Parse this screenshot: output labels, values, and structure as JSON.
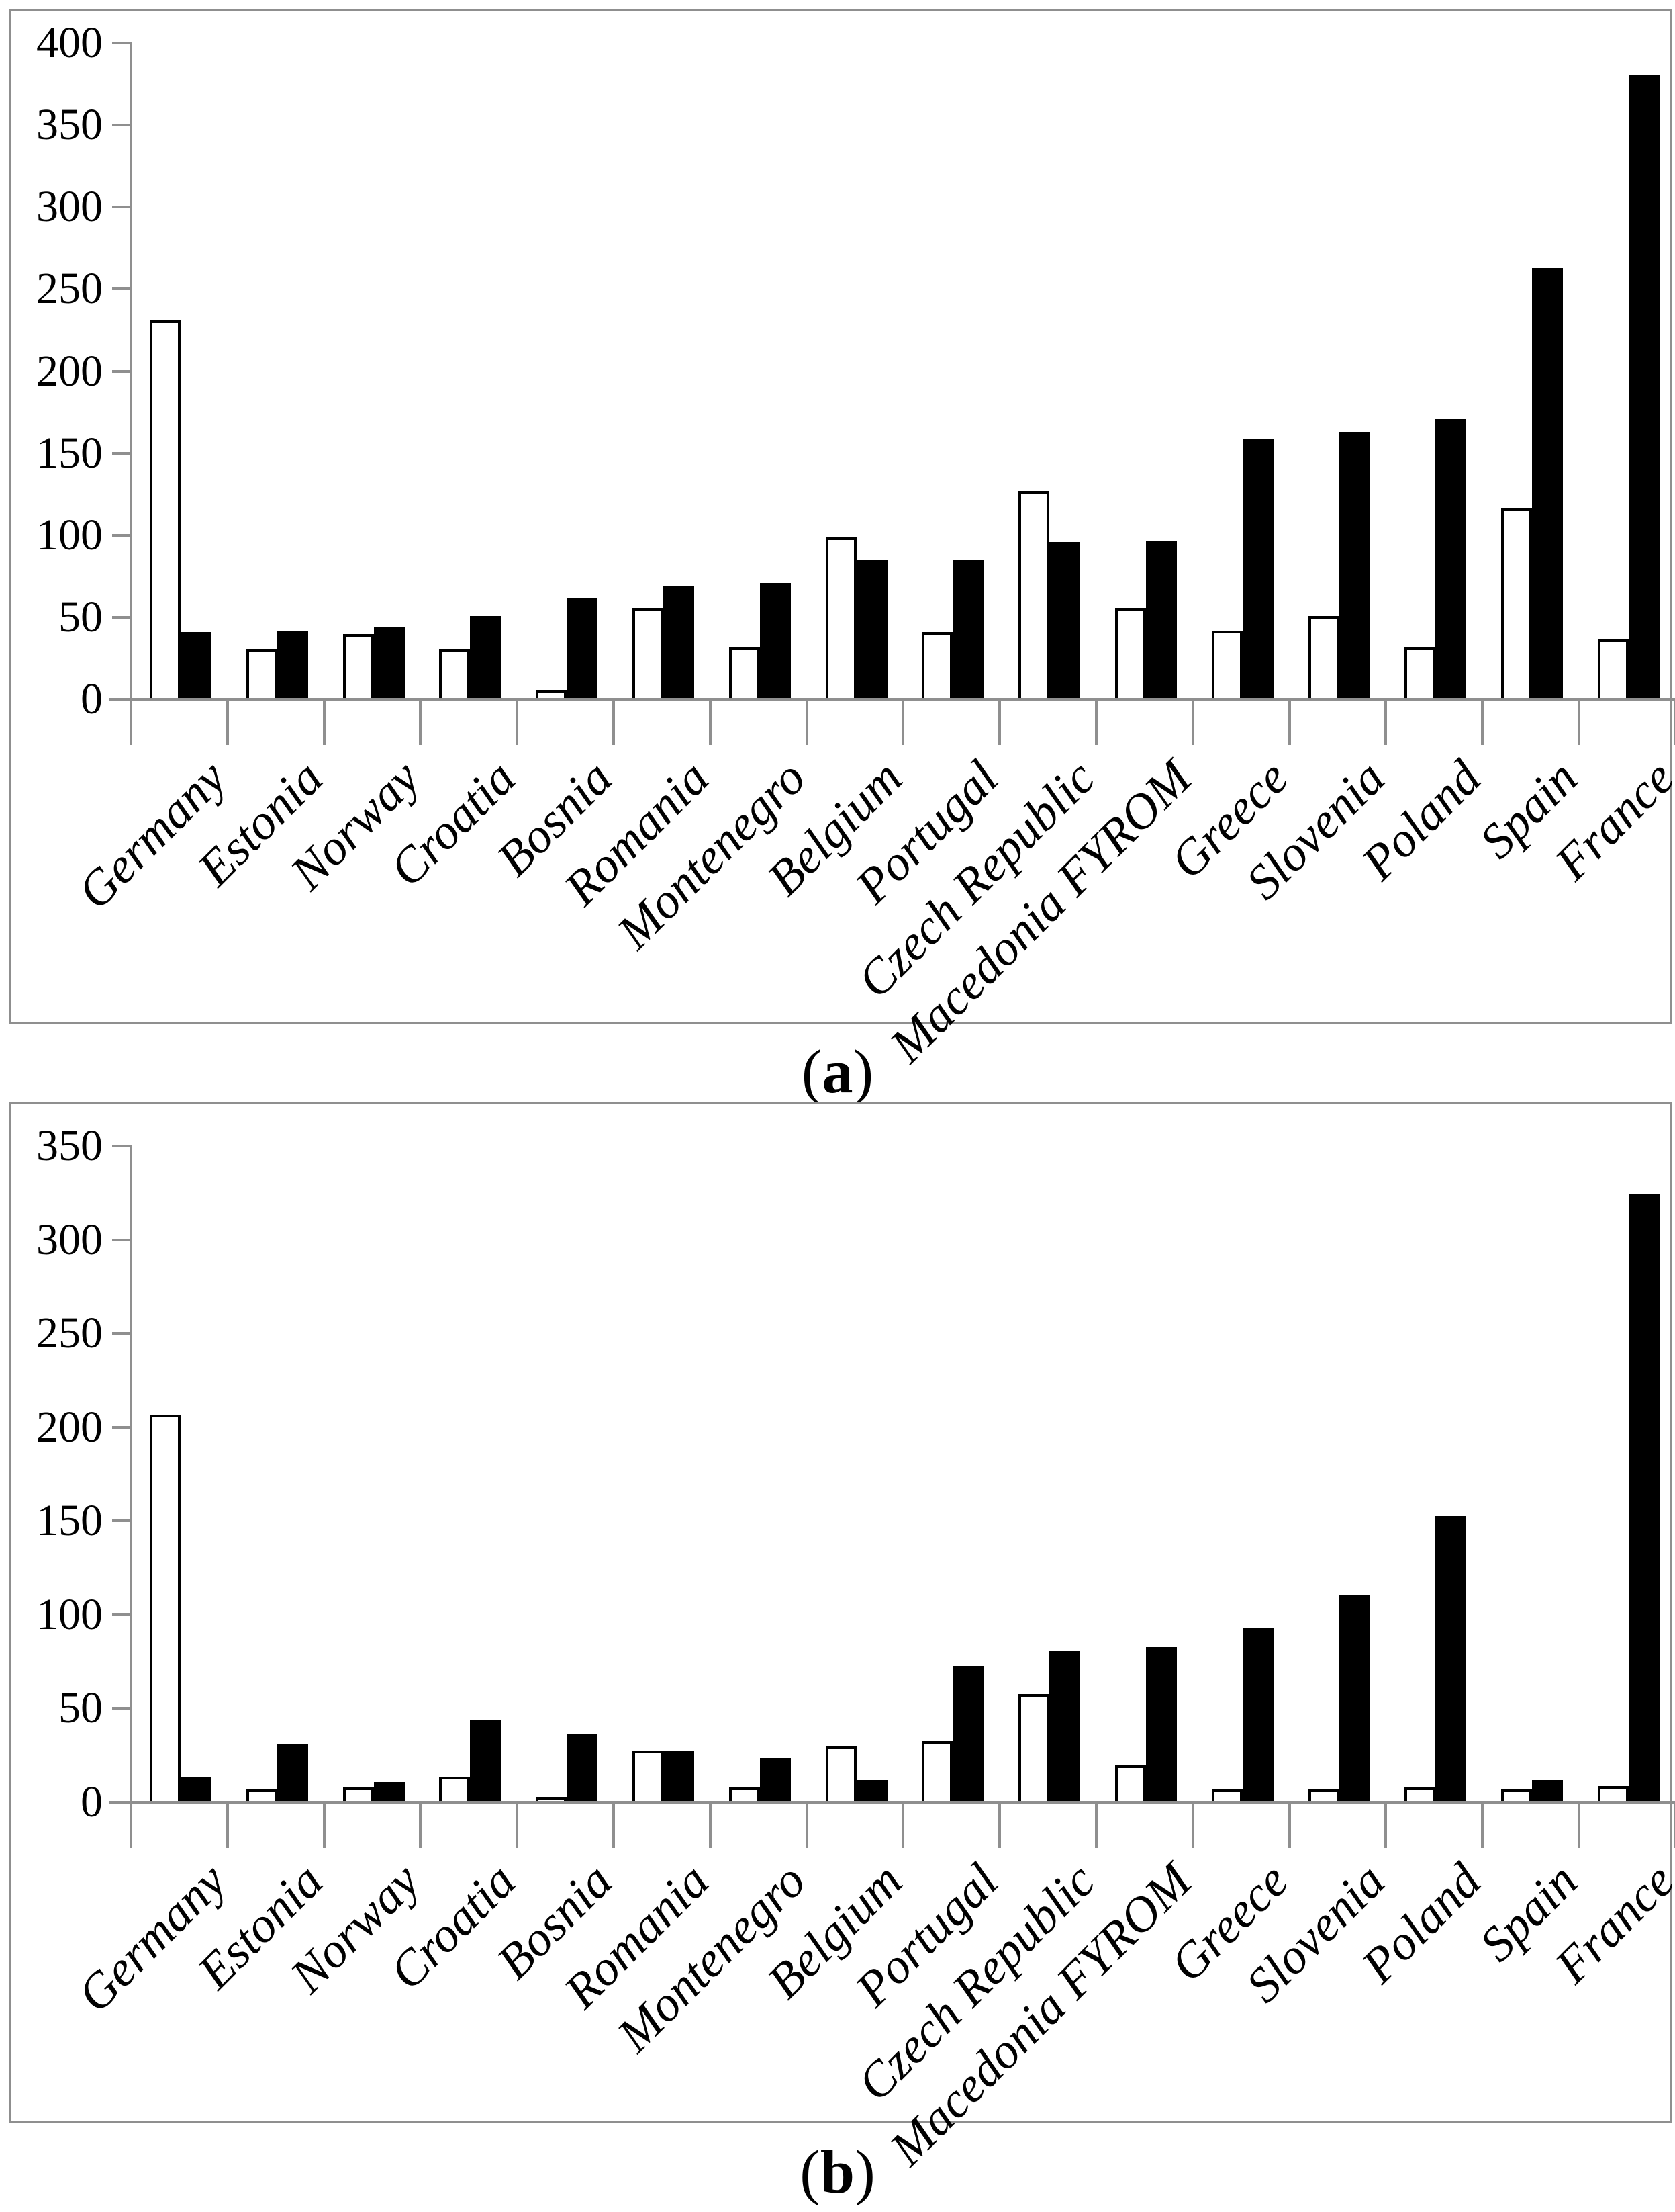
{
  "chart_data": [
    {
      "id": "a",
      "type": "bar",
      "caption_open": "(",
      "caption_letter": "a",
      "caption_close": ")",
      "categories": [
        "Germany",
        "Estonia",
        "Norway",
        "Croatia",
        "Bosnia",
        "Romania",
        "Montenegro",
        "Belgium",
        "Portugal",
        "Czech Republic",
        "Macedonia FYROM",
        "Greece",
        "Slovenia",
        "Poland",
        "Spain",
        "France"
      ],
      "series": [
        {
          "name": "open-bars",
          "fill": "#ffffff",
          "values": [
            230,
            30,
            39,
            30,
            5,
            55,
            31,
            98,
            40,
            126,
            55,
            41,
            50,
            31,
            116,
            36
          ]
        },
        {
          "name": "filled-bars",
          "fill": "#000000",
          "values": [
            40,
            41,
            43,
            50,
            61,
            68,
            70,
            84,
            84,
            95,
            96,
            158,
            162,
            170,
            262,
            380
          ]
        }
      ],
      "ylim": [
        0,
        400
      ],
      "yticks": [
        0,
        50,
        100,
        150,
        200,
        250,
        300,
        350,
        400
      ],
      "xlabel": "",
      "ylabel": "",
      "title": "",
      "grid": false,
      "legend": "none"
    },
    {
      "id": "b",
      "type": "bar",
      "caption_open": "(",
      "caption_letter": "b",
      "caption_close": ")",
      "categories": [
        "Germany",
        "Estonia",
        "Norway",
        "Croatia",
        "Bosnia",
        "Romania",
        "Montenegro",
        "Belgium",
        "Portugal",
        "Czech Republic",
        "Macedonia FYROM",
        "Greece",
        "Slovenia",
        "Poland",
        "Spain",
        "France"
      ],
      "series": [
        {
          "name": "open-bars",
          "fill": "#ffffff",
          "values": [
            206,
            6,
            7,
            13,
            2,
            27,
            7,
            29,
            32,
            57,
            19,
            6,
            6,
            7,
            6,
            8
          ]
        },
        {
          "name": "filled-bars",
          "fill": "#000000",
          "values": [
            13,
            30,
            10,
            43,
            36,
            27,
            23,
            11,
            72,
            80,
            82,
            92,
            110,
            152,
            11,
            324
          ]
        }
      ],
      "ylim": [
        0,
        350
      ],
      "yticks": [
        0,
        50,
        100,
        150,
        200,
        250,
        300,
        350
      ],
      "xlabel": "",
      "ylabel": "",
      "title": "",
      "grid": false,
      "legend": "none"
    }
  ],
  "styles": {
    "axis_color": "#8f8f8f",
    "bar_outline_color": "#000000",
    "open_bar_fill": "#ffffff",
    "filled_bar_fill": "#000000",
    "text_color": "#000000"
  }
}
